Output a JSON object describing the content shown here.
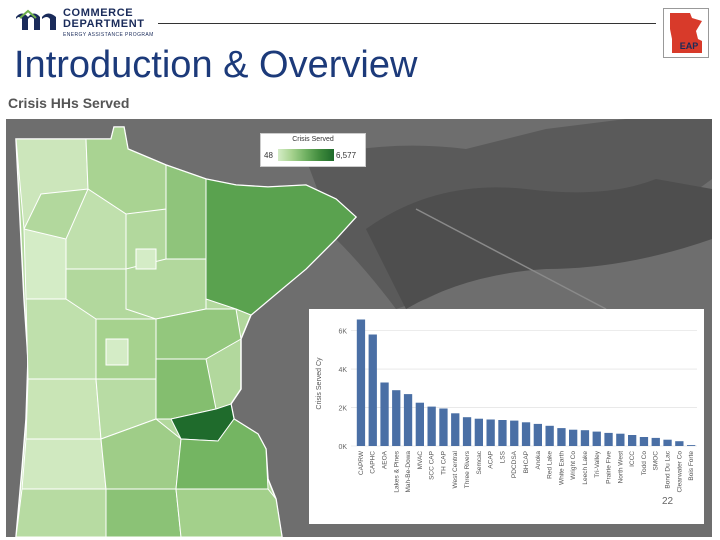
{
  "header": {
    "logo": {
      "line1": "COMMERCE",
      "line2": "DEPARTMENT",
      "line3": "ENERGY ASSISTANCE PROGRAM"
    },
    "badge_label": "EAP",
    "title": "Introduction & Overview"
  },
  "map": {
    "title": "Crisis HHs Served",
    "legend": {
      "title": "Crisis Served",
      "min": "48",
      "max": "6,577"
    }
  },
  "chart_data": {
    "type": "bar",
    "ylabel": "Crisis Served Cy",
    "ylim": [
      0,
      6500
    ],
    "yticks": [
      "0K",
      "2K",
      "4K",
      "6K"
    ],
    "categories": [
      "CAPRW",
      "CAPHC",
      "AEOA",
      "Lakes & Pines",
      "Mah-Be-Dowa",
      "MVAC",
      "SCC CAP",
      "TH CAP",
      "West Central",
      "Three Rivers",
      "Semcac",
      "ACAP",
      "LSS",
      "PDCDSA",
      "BHCAP",
      "Anoka",
      "Red Lake",
      "White Earth",
      "Wright Co",
      "Leech Lake",
      "Tri-Valley",
      "Prairie Five",
      "North West",
      "ICCC",
      "Todd Co",
      "SMOC",
      "Bond Du Lac",
      "Clearwater Co",
      "Bois Forte"
    ],
    "values": [
      6577,
      5800,
      3300,
      2900,
      2700,
      2250,
      2050,
      1950,
      1700,
      1500,
      1420,
      1380,
      1350,
      1320,
      1230,
      1150,
      1050,
      930,
      850,
      820,
      750,
      680,
      640,
      570,
      470,
      420,
      330,
      250,
      48
    ],
    "color": "#4a6fa5"
  },
  "slide_number": "22"
}
